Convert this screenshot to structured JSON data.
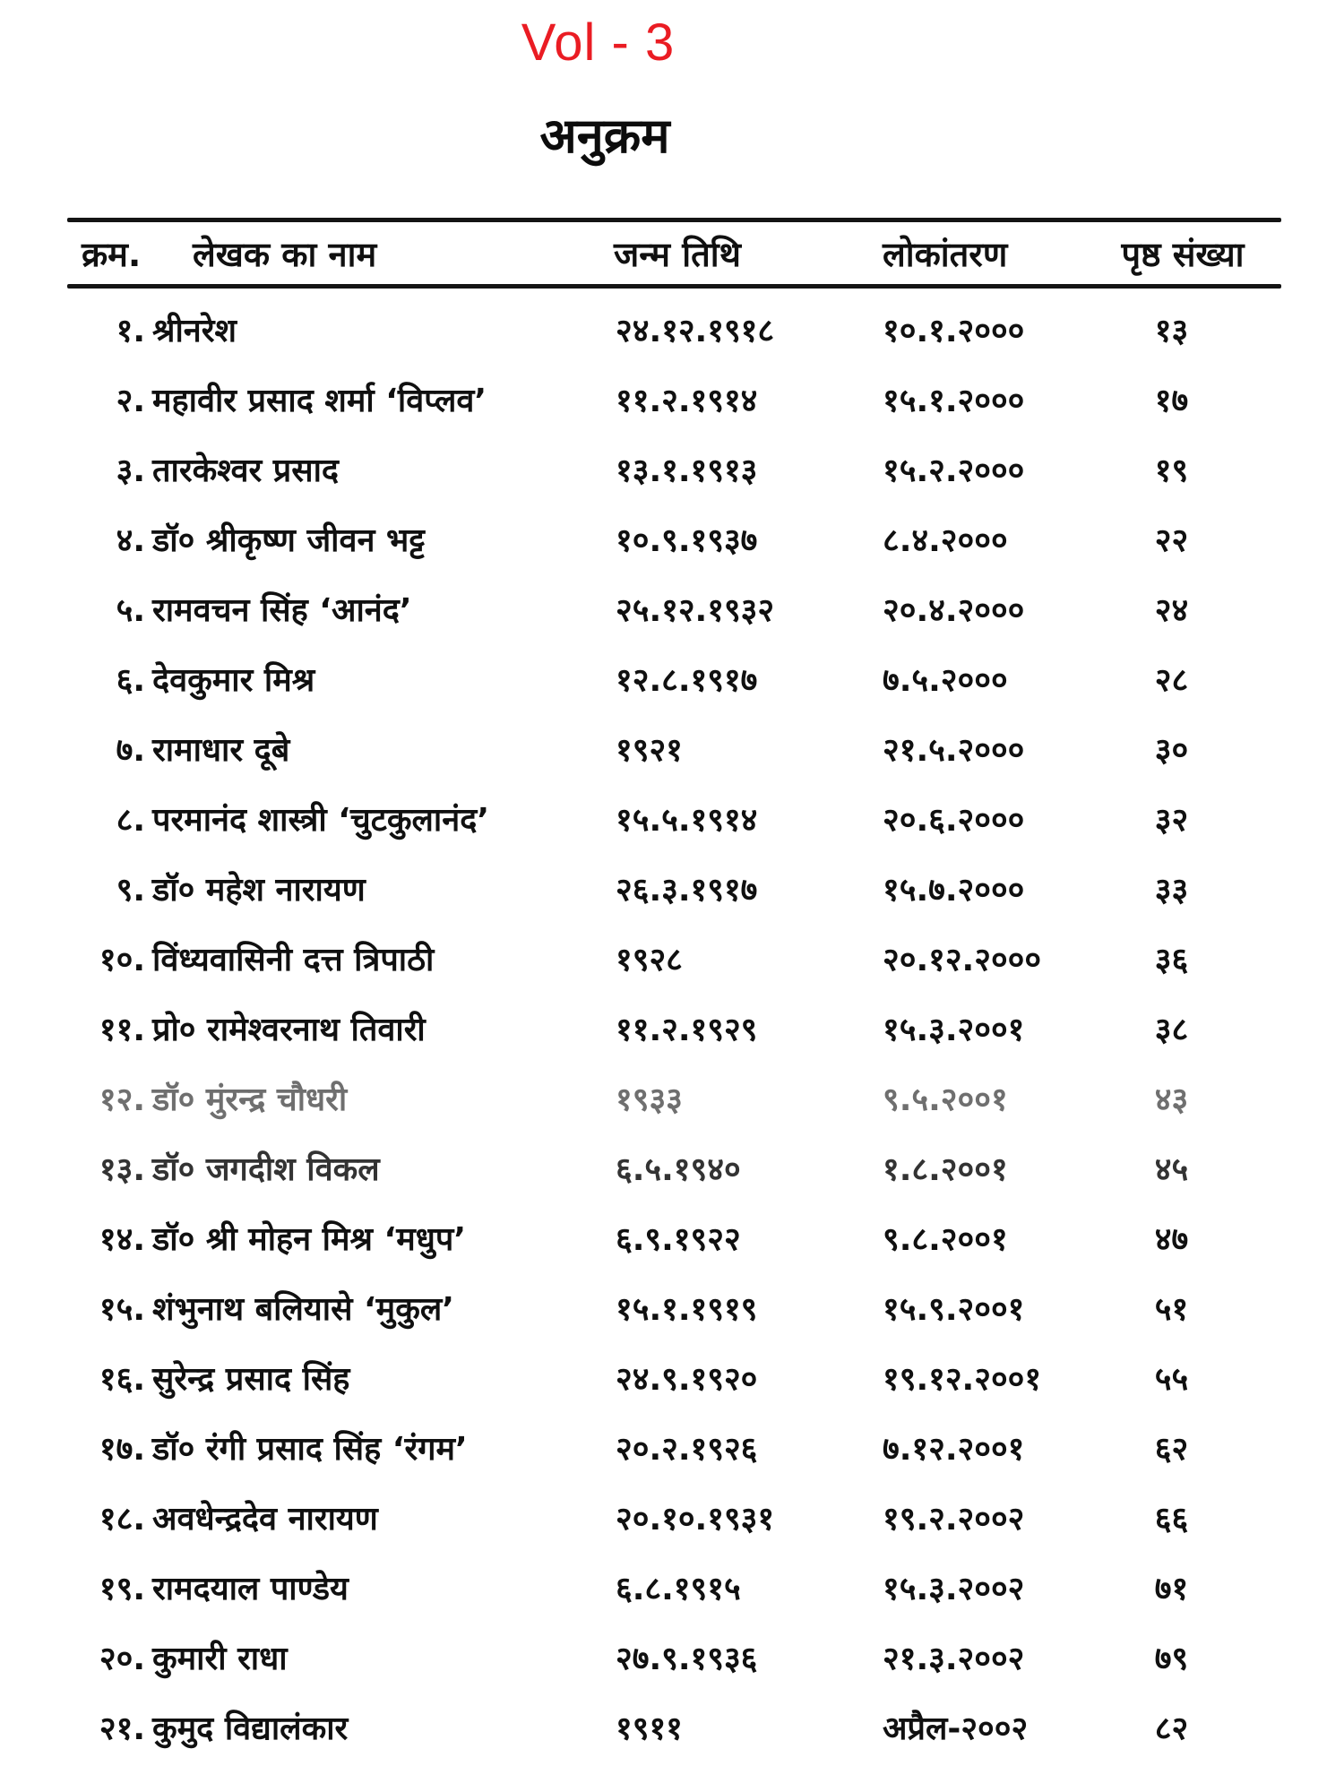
{
  "page": {
    "volume_label": "Vol - 3",
    "heading": "अनुक्रम",
    "accent_color": "#ea1c23",
    "text_color": "#101010"
  },
  "table": {
    "headers": {
      "serial": "क्रम.",
      "name": "लेखक का नाम",
      "birth": "जन्म तिथि",
      "death": "लोकांतरण",
      "page": "पृष्ठ संख्या"
    },
    "rows": [
      {
        "serial": "१.",
        "name": "श्रीनरेश",
        "birth": "२४.१२.१९१८",
        "death": "१०.१.२०००",
        "page": "१३"
      },
      {
        "serial": "२.",
        "name": "महावीर प्रसाद शर्मा ‘विप्लव’",
        "birth": "११.२.१९१४",
        "death": "१५.१.२०००",
        "page": "१७"
      },
      {
        "serial": "३.",
        "name": "तारकेश्वर प्रसाद",
        "birth": "१३.१.१९१३",
        "death": "१५.२.२०००",
        "page": "१९"
      },
      {
        "serial": "४.",
        "name": "डॉ० श्रीकृष्ण जीवन भट्ट",
        "birth": "१०.९.१९३७",
        "death": "८.४.२०००",
        "page": "२२"
      },
      {
        "serial": "५.",
        "name": "रामवचन सिंह ‘आनंद’",
        "birth": "२५.१२.१९३२",
        "death": "२०.४.२०००",
        "page": "२४"
      },
      {
        "serial": "६.",
        "name": "देवकुमार मिश्र",
        "birth": "१२.८.१९१७",
        "death": "७.५.२०००",
        "page": "२८"
      },
      {
        "serial": "७.",
        "name": "रामाधार दूबे",
        "birth": "१९२१",
        "death": "२१.५.२०००",
        "page": "३०"
      },
      {
        "serial": "८.",
        "name": "परमानंद शास्त्री ‘चुटकुलानंद’",
        "birth": "१५.५.१९१४",
        "death": "२०.६.२०००",
        "page": "३२"
      },
      {
        "serial": "९.",
        "name": "डॉ० महेश नारायण",
        "birth": "२६.३.१९१७",
        "death": "१५.७.२०००",
        "page": "३३"
      },
      {
        "serial": "१०.",
        "name": "विंध्यवासिनी दत्त त्रिपाठी",
        "birth": "१९२८",
        "death": "२०.१२.२०००",
        "page": "३६"
      },
      {
        "serial": "११.",
        "name": "प्रो० रामेश्वरनाथ तिवारी",
        "birth": "११.२.१९२९",
        "death": "१५.३.२००१",
        "page": "३८"
      },
      {
        "serial": "१२.",
        "name": "डॉ० मुंरन्द्र चौधरी",
        "birth": "१९३३",
        "death": "९.५.२००१",
        "page": "४३"
      },
      {
        "serial": "१३.",
        "name": "डॉ० जगदीश विकल",
        "birth": "६.५.१९४०",
        "death": "१.८.२००१",
        "page": "४५"
      },
      {
        "serial": "१४.",
        "name": "डॉ० श्री मोहन मिश्र ‘मधुप’",
        "birth": "६.९.१९२२",
        "death": "९.८.२००१",
        "page": "४७"
      },
      {
        "serial": "१५.",
        "name": "शंभुनाथ बलियासे ‘मुकुल’",
        "birth": "१५.१.१९१९",
        "death": "१५.९.२००१",
        "page": "५१"
      },
      {
        "serial": "१६.",
        "name": "सुरेन्द्र प्रसाद सिंह",
        "birth": "२४.९.१९२०",
        "death": "१९.१२.२००१",
        "page": "५५"
      },
      {
        "serial": "१७.",
        "name": "डॉ० रंगी प्रसाद सिंह ‘रंगम’",
        "birth": "२०.२.१९२६",
        "death": "७.१२.२००१",
        "page": "६२"
      },
      {
        "serial": "१८.",
        "name": "अवधेन्द्रदेव नारायण",
        "birth": "२०.१०.१९३१",
        "death": "१९.२.२००२",
        "page": "६६"
      },
      {
        "serial": "१९.",
        "name": "रामदयाल पाण्डेय",
        "birth": "६.८.१९१५",
        "death": "१५.३.२००२",
        "page": "७१"
      },
      {
        "serial": "२०.",
        "name": "कुमारी राधा",
        "birth": "२७.९.१९३६",
        "death": "२१.३.२००२",
        "page": "७९"
      },
      {
        "serial": "२१.",
        "name": "कुमुद विद्यालंकार",
        "birth": "१९११",
        "death": "अप्रैल-२००२",
        "page": "८२"
      }
    ]
  }
}
